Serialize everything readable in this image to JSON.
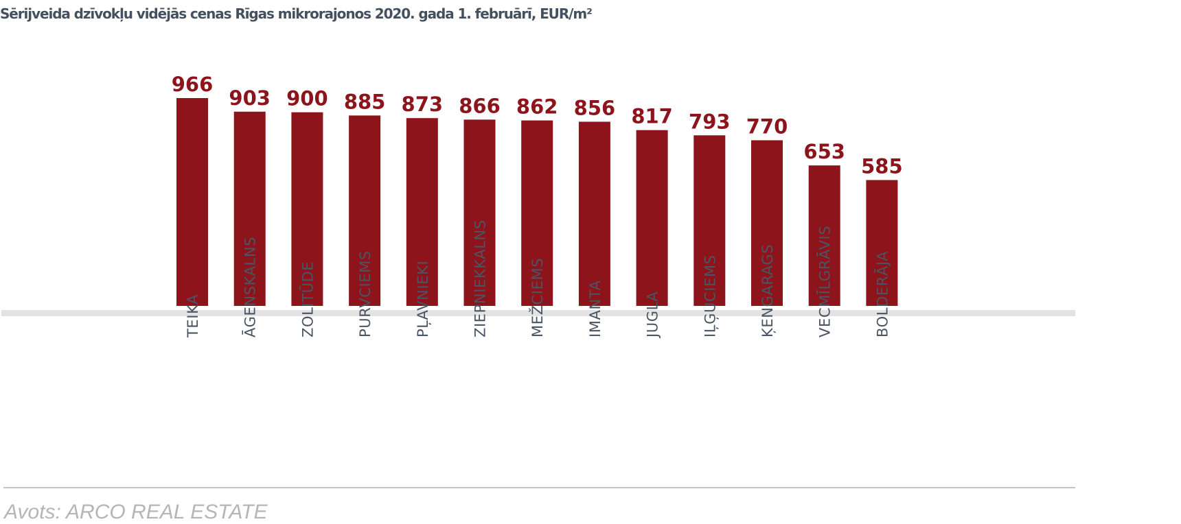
{
  "title": "Sērijveida dzīvokļu vidējās cenas Rīgas mikrorajonos 2020. gada 1. februārī, EUR/m²",
  "source": "Avots: ARCO REAL ESTATE",
  "colors": {
    "bar": "#8e141c",
    "value_label": "#8e141c",
    "title": "#44505d",
    "category_label": "#4a5563",
    "baseline": "#e3e3e3",
    "divider": "#c4c4c4",
    "source": "#b5b5b5"
  },
  "chart_data": {
    "type": "bar",
    "title": "Sērijveida dzīvokļu vidējās cenas Rīgas mikrorajonos 2020. gada 1. februārī, EUR/m²",
    "xlabel": "",
    "ylabel": "",
    "categories": [
      "TEIKA",
      "ĀGENSKALNS",
      "ZOLITŪDE",
      "PURVCIEMS",
      "PĻAVNIEKI",
      "ZIEPNIEKKALNS",
      "MEŽCIEMS",
      "IMANTA",
      "JUGLA",
      "IĻĢUCIEMS",
      "ĶENGARAGS",
      "VECMĪLGRĀVIS",
      "BOLDERĀJA"
    ],
    "values": [
      966,
      903,
      900,
      885,
      873,
      866,
      862,
      856,
      817,
      793,
      770,
      653,
      585
    ],
    "ylim": [
      0,
      966
    ],
    "grid": false,
    "legend": "none",
    "data_labels": true,
    "category_label_orientation": "vertical"
  }
}
